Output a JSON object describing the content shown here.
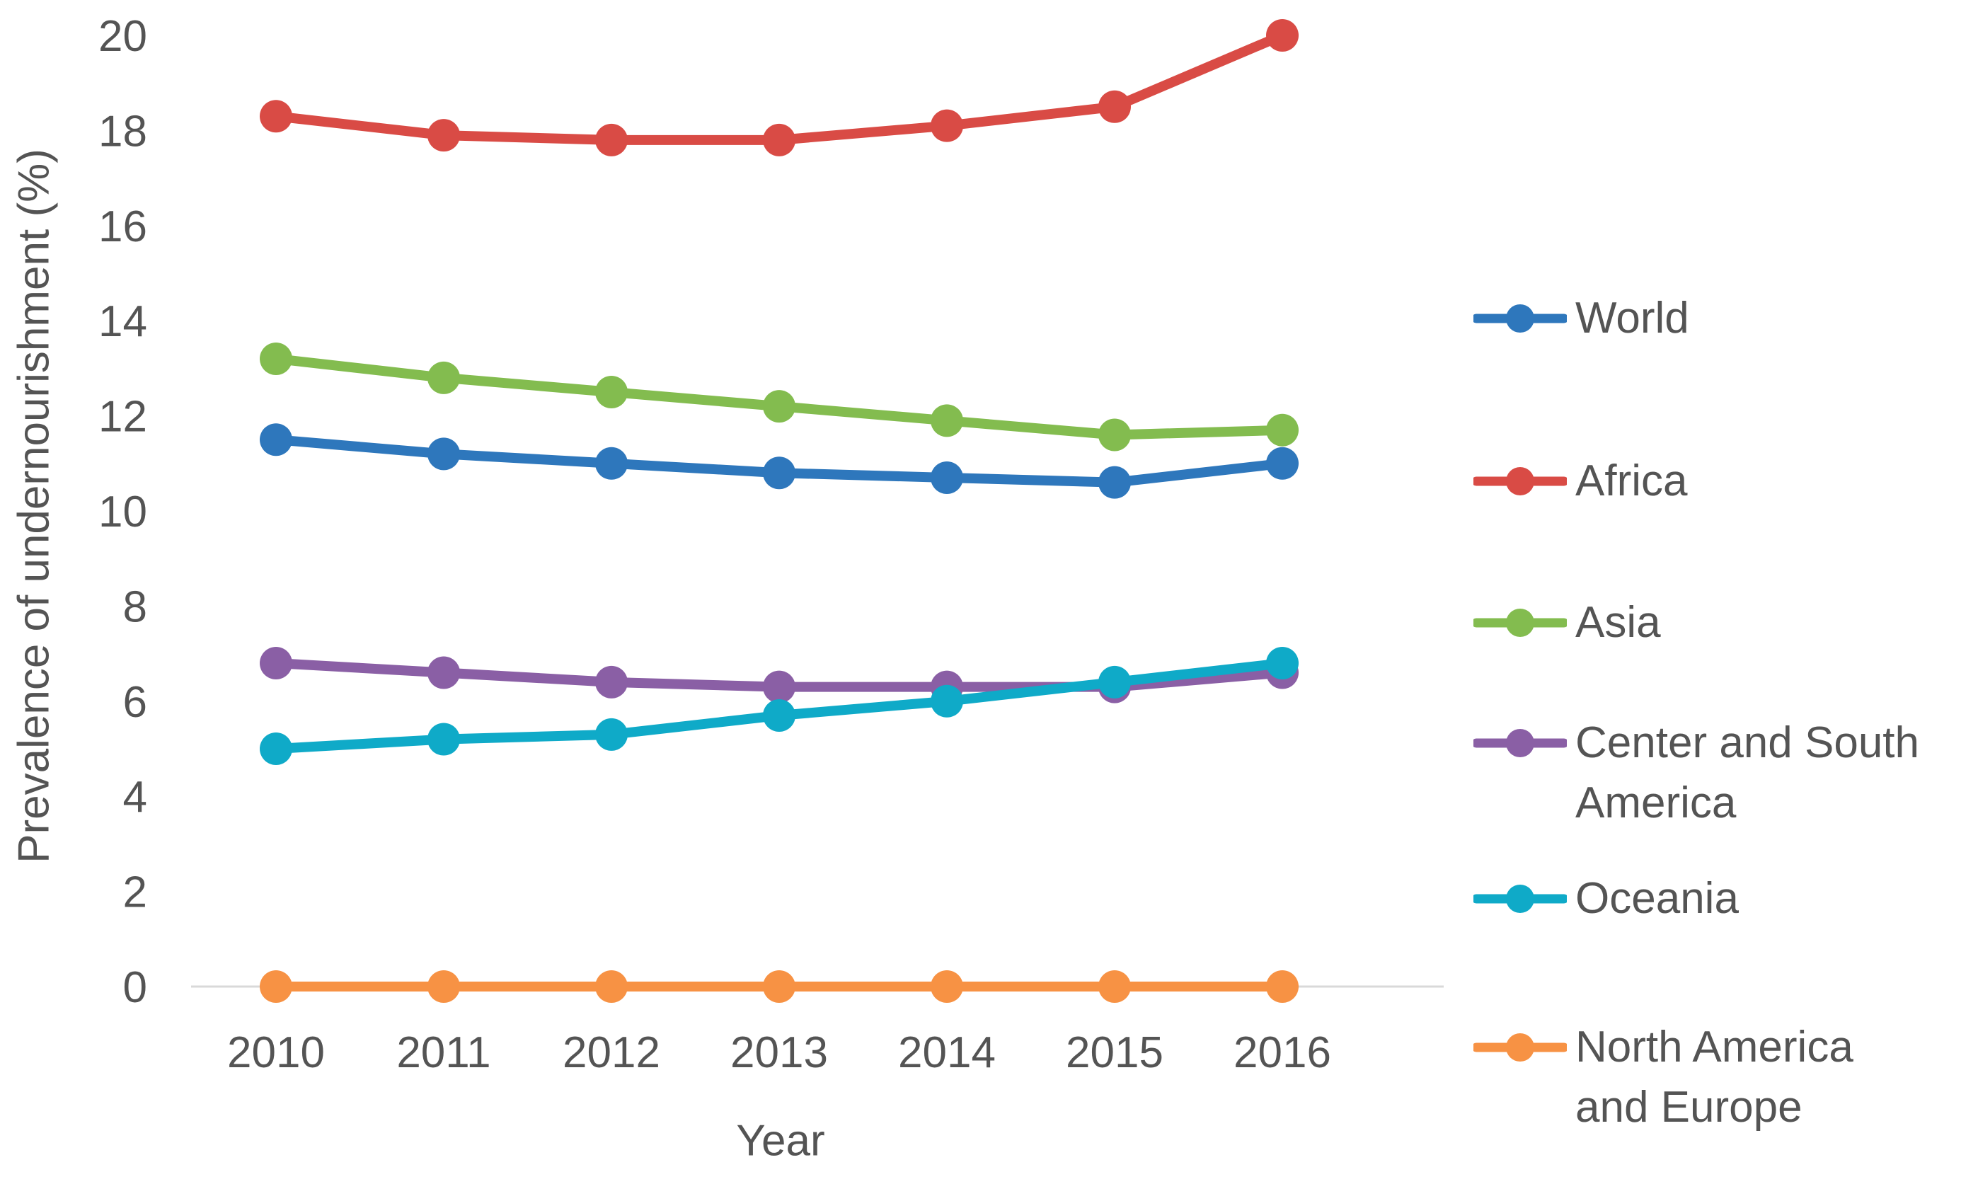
{
  "chart_data": {
    "type": "line",
    "title": "",
    "xlabel": "Year",
    "ylabel": "Prevalence of undernourishment (%)",
    "x": [
      2010,
      2011,
      2012,
      2013,
      2014,
      2015,
      2016
    ],
    "x_tick_labels": [
      "2010",
      "2011",
      "2012",
      "2013",
      "2014",
      "2015",
      "2016"
    ],
    "y_ticks": [
      0,
      2,
      4,
      6,
      8,
      10,
      12,
      14,
      16,
      18,
      20
    ],
    "ylim": [
      0,
      20
    ],
    "grid": "zero-baseline-only",
    "gridline_color": "#d9d9d9",
    "text_color": "#545454",
    "legend_position": "right",
    "series": [
      {
        "name": "World",
        "legend_label": "World",
        "color": "#2e77bc",
        "values": [
          11.5,
          11.2,
          11.0,
          10.8,
          10.7,
          10.6,
          11.0
        ]
      },
      {
        "name": "Africa",
        "legend_label": "Africa",
        "color": "#d94b45",
        "values": [
          18.3,
          17.9,
          17.8,
          17.8,
          18.1,
          18.5,
          20.0
        ]
      },
      {
        "name": "Asia",
        "legend_label": "Asia",
        "color": "#83bc4f",
        "values": [
          13.2,
          12.8,
          12.5,
          12.2,
          11.9,
          11.6,
          11.7
        ]
      },
      {
        "name": "Center and South America",
        "legend_label": "Center and South\nAmerica",
        "color": "#8a5fa5",
        "values": [
          6.8,
          6.6,
          6.4,
          6.3,
          6.3,
          6.3,
          6.6
        ]
      },
      {
        "name": "Oceania",
        "legend_label": "Oceania",
        "color": "#0faac8",
        "values": [
          5.0,
          5.2,
          5.3,
          5.7,
          6.0,
          6.4,
          6.8
        ]
      },
      {
        "name": "North America and Europe",
        "legend_label": "North America\nand Europe",
        "color": "#f79244",
        "values": [
          0,
          0,
          0,
          0,
          0,
          0,
          0
        ]
      }
    ]
  }
}
